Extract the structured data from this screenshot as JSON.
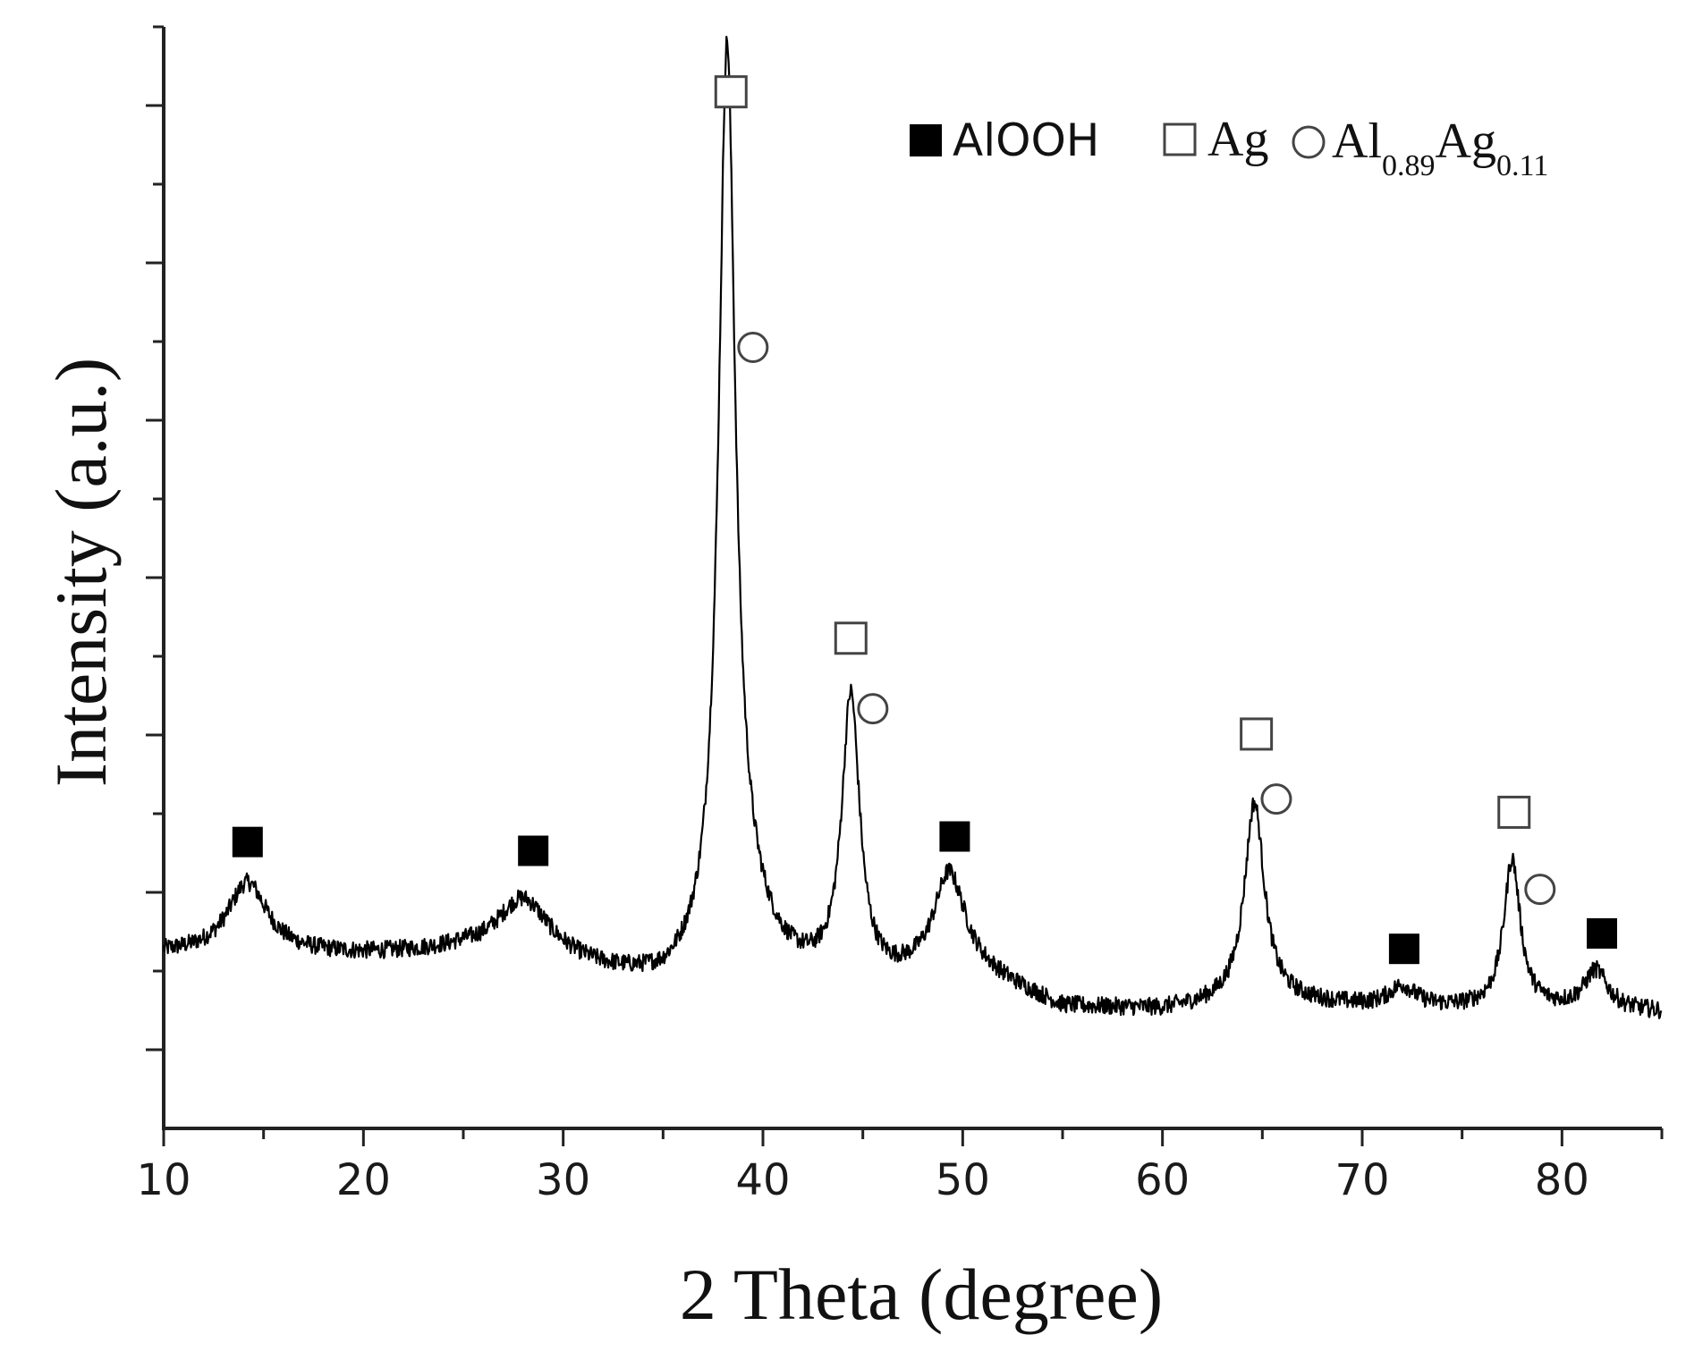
{
  "chart_data": {
    "type": "line",
    "title": "",
    "xlabel": "2 Theta (degree)",
    "ylabel": "Intensity (a.u.)",
    "xlim": [
      10,
      85
    ],
    "ylim": [
      0,
      100
    ],
    "x_ticks": [
      10,
      20,
      30,
      40,
      50,
      60,
      70,
      80
    ],
    "y_ticks_labeled": false,
    "grid": false,
    "legend": {
      "placement": "top-right",
      "entries": [
        {
          "marker": "filled-square",
          "label": "AlOOH"
        },
        {
          "marker": "open-square",
          "label": "Ag"
        },
        {
          "marker": "open-circle",
          "label": "Al",
          "sub1": "0.89",
          "label2": "Ag",
          "sub2": "0.11"
        }
      ]
    },
    "series": [
      {
        "baseline": [
          [
            10,
            15.8
          ],
          [
            20,
            15.6
          ],
          [
            25,
            15.8
          ],
          [
            30,
            14.5
          ],
          [
            35,
            12.5
          ],
          [
            40,
            13.5
          ],
          [
            45,
            12.3
          ],
          [
            50,
            14.5
          ],
          [
            55,
            10.8
          ],
          [
            60,
            10.6
          ],
          [
            65,
            11.5
          ],
          [
            70,
            11.0
          ],
          [
            75,
            10.8
          ],
          [
            80,
            10.8
          ],
          [
            85,
            10.5
          ]
        ],
        "peaks": [
          {
            "x": 14.2,
            "h": 6.5,
            "w": 1.2
          },
          {
            "x": 28.0,
            "h": 5.5,
            "w": 1.6
          },
          {
            "x": 38.2,
            "h": 80.0,
            "w": 0.5
          },
          {
            "x": 38.8,
            "h": 6.0,
            "w": 1.5
          },
          {
            "x": 44.4,
            "h": 26.0,
            "w": 0.55
          },
          {
            "x": 49.3,
            "h": 8.5,
            "w": 0.9
          },
          {
            "x": 64.6,
            "h": 18.0,
            "w": 0.6
          },
          {
            "x": 72.0,
            "h": 1.8,
            "w": 0.8
          },
          {
            "x": 77.5,
            "h": 13.5,
            "w": 0.5
          },
          {
            "x": 81.7,
            "h": 3.5,
            "w": 0.7
          }
        ],
        "noise_amplitude": 0.8
      }
    ],
    "annotations": [
      {
        "marker": "filled-square",
        "phase": "AlOOH",
        "x": 14.2,
        "y": 26.0
      },
      {
        "marker": "filled-square",
        "phase": "AlOOH",
        "x": 28.5,
        "y": 25.2
      },
      {
        "marker": "open-square",
        "phase": "Ag",
        "x": 38.4,
        "y": 94.1
      },
      {
        "marker": "open-circle",
        "phase": "Al0.89Ag0.11",
        "x": 39.5,
        "y": 70.9
      },
      {
        "marker": "open-square",
        "phase": "Ag",
        "x": 44.4,
        "y": 44.5
      },
      {
        "marker": "open-circle",
        "phase": "Al0.89Ag0.11",
        "x": 45.5,
        "y": 38.1
      },
      {
        "marker": "filled-square",
        "phase": "AlOOH",
        "x": 49.6,
        "y": 26.5
      },
      {
        "marker": "open-square",
        "phase": "Ag",
        "x": 64.7,
        "y": 35.8
      },
      {
        "marker": "open-circle",
        "phase": "Al0.89Ag0.11",
        "x": 65.7,
        "y": 29.9
      },
      {
        "marker": "filled-square",
        "phase": "AlOOH",
        "x": 72.1,
        "y": 16.3
      },
      {
        "marker": "open-square",
        "phase": "Ag",
        "x": 77.6,
        "y": 28.7
      },
      {
        "marker": "open-circle",
        "phase": "Al0.89Ag0.11",
        "x": 78.9,
        "y": 21.7
      },
      {
        "marker": "filled-square",
        "phase": "AlOOH",
        "x": 82.0,
        "y": 17.7
      }
    ]
  }
}
